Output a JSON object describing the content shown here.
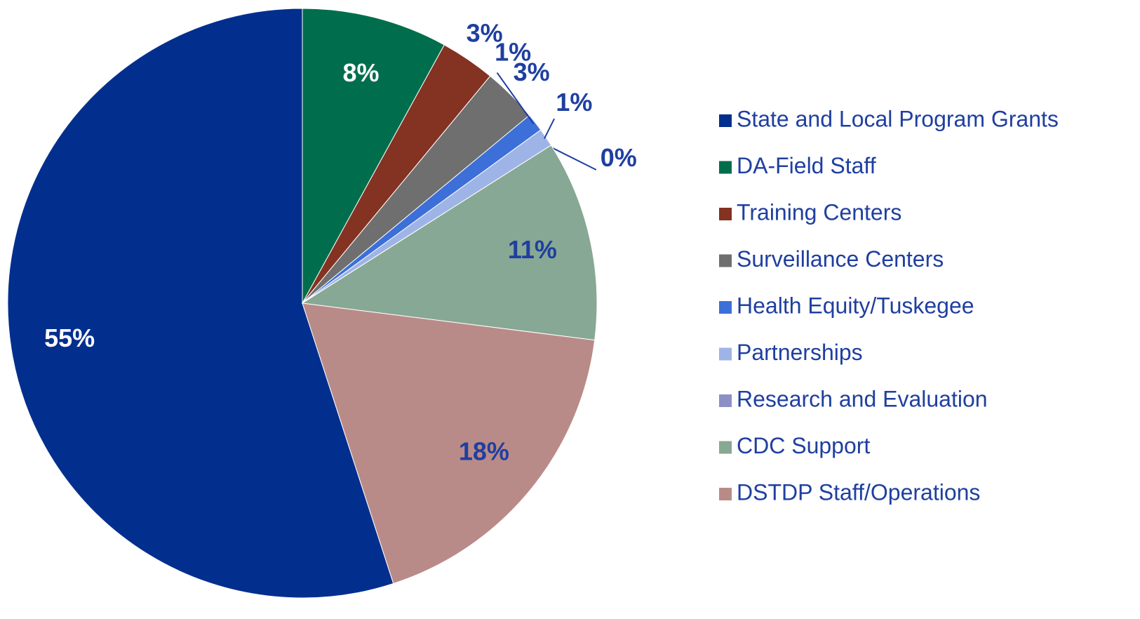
{
  "chart_data": {
    "type": "pie",
    "categories": [
      "State and Local Program Grants",
      "DA-Field Staff",
      "Training Centers",
      "Surveillance Centers",
      "Health Equity/Tuskegee",
      "Partnerships",
      "Research and Evaluation",
      "CDC Support",
      "DSTDP Staff/Operations"
    ],
    "values": [
      55,
      8,
      3,
      3,
      1,
      1,
      0,
      11,
      18
    ],
    "value_labels": [
      "55%",
      "8%",
      "3%",
      "3%",
      "1%",
      "1%",
      "0%",
      "11%",
      "18%"
    ],
    "colors": [
      "#022f8e",
      "#006e4c",
      "#843221",
      "#6f6f6f",
      "#3c6fd8",
      "#9fb4e6",
      "#8c8fc6",
      "#87a894",
      "#b98b88"
    ],
    "label_colors": [
      "#ffffff",
      "#ffffff",
      "#1f3fa0",
      "#1f3fa0",
      "#1f3fa0",
      "#1f3fa0",
      "#1f3fa0",
      "#1f3fa0",
      "#1f3fa0"
    ],
    "legend": "right"
  }
}
